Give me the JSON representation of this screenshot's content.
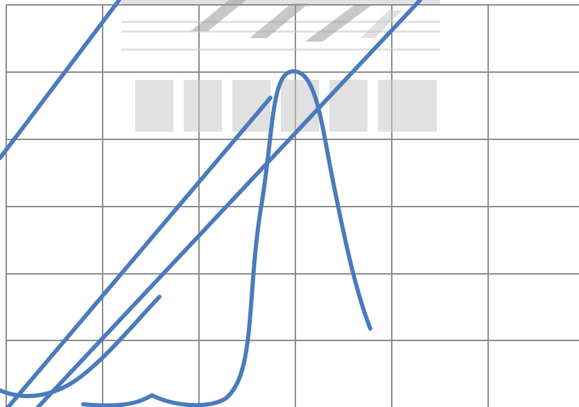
{
  "board": {
    "background": "#ffffff",
    "grid_color": "#8a8a8a",
    "ink_color": "#4a7bbd",
    "grid": {
      "columns": 6,
      "rows": 6
    }
  },
  "strokes": [
    {
      "name": "long-diagonal-line-left",
      "kind": "straight-line"
    },
    {
      "name": "long-diagonal-line-right",
      "kind": "straight-line"
    },
    {
      "name": "short-diagonal-line",
      "kind": "straight-line"
    },
    {
      "name": "bell-curve",
      "kind": "curve"
    },
    {
      "name": "parabola-curve",
      "kind": "curve"
    },
    {
      "name": "top-left-diagonal-line",
      "kind": "straight-line"
    }
  ],
  "watermark": {
    "kind": "faded-logo"
  }
}
